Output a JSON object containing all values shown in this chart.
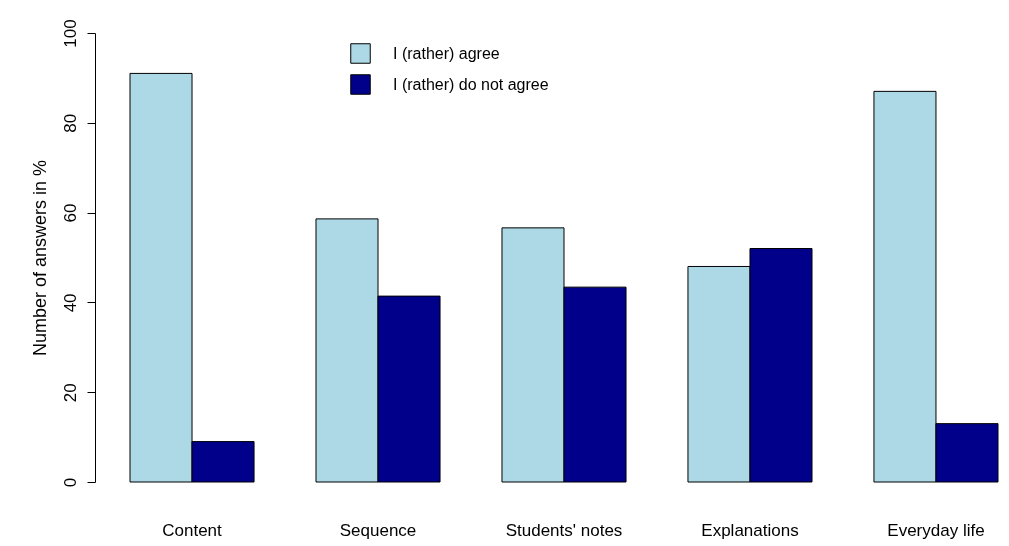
{
  "chart_data": {
    "type": "bar",
    "ylabel": "Number of answers in %",
    "categories": [
      "Content",
      "Sequence",
      "Students' notes",
      "Explanations",
      "Everyday life"
    ],
    "series": [
      {
        "name": "I (rather) agree",
        "color": "#add8e6",
        "values": [
          91,
          58.6,
          56.6,
          48,
          87
        ]
      },
      {
        "name": "I (rather) do not agree",
        "color": "#00008b",
        "values": [
          9,
          41.4,
          43.4,
          52,
          13
        ]
      }
    ],
    "ylim": [
      0,
      100
    ],
    "yticks": [
      0,
      20,
      40,
      60,
      80,
      100
    ],
    "legend": "top",
    "grid": false
  }
}
